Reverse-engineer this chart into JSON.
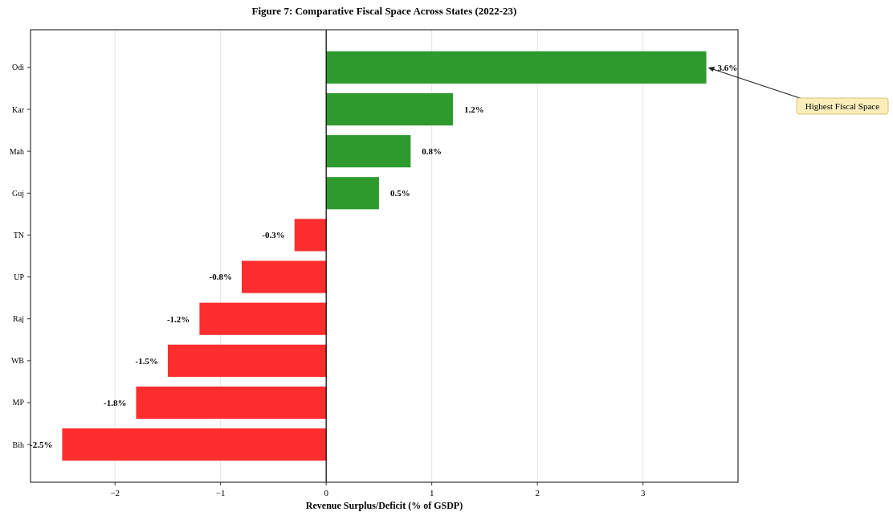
{
  "chart_data": {
    "type": "bar",
    "orientation": "horizontal",
    "title": "Figure 7: Comparative Fiscal Space Across States (2022-23)",
    "xlabel": "Revenue Surplus/Deficit (% of GSDP)",
    "categories": [
      "Odi",
      "Kar",
      "Mah",
      "Guj",
      "TN",
      "UP",
      "Raj",
      "WB",
      "MP",
      "Bih"
    ],
    "values": [
      3.6,
      1.2,
      0.8,
      0.5,
      -0.3,
      -0.8,
      -1.2,
      -1.5,
      -1.8,
      -2.5
    ],
    "colors": [
      "#2e9a2e",
      "#2e9a2e",
      "#2e9a2e",
      "#2e9a2e",
      "#fe2e2e",
      "#fe2e2e",
      "#fe2e2e",
      "#fe2e2e",
      "#fe2e2e",
      "#fe2e2e"
    ],
    "value_labels": [
      "3.6%",
      "1.2%",
      "0.8%",
      "0.5%",
      "-0.3%",
      "-0.8%",
      "-1.2%",
      "-1.5%",
      "-1.8%",
      "-2.5%"
    ],
    "xlim": [
      -2.8,
      3.9
    ],
    "xticks": [
      {
        "value": -2,
        "label": "−2"
      },
      {
        "value": -1,
        "label": "−1"
      },
      0,
      1,
      2,
      3
    ],
    "ref_lines": [
      {
        "axis": "x",
        "value": 0,
        "color": "#000000"
      }
    ],
    "grid": "x",
    "annotations": [
      {
        "text": "Highest Fiscal Space",
        "x": 3.6,
        "y": "Odi"
      }
    ]
  }
}
